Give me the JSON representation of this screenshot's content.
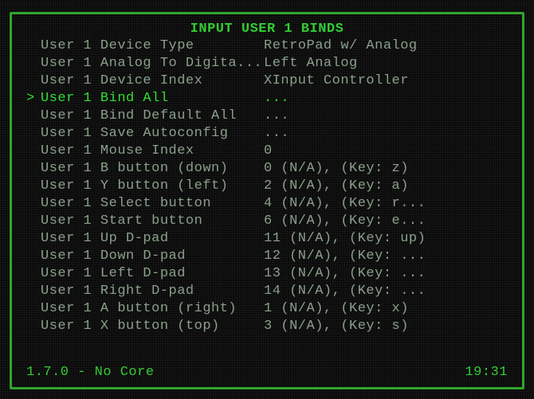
{
  "title": "INPUT USER 1 BINDS",
  "selected_index": 3,
  "rows": [
    {
      "label": "User 1 Device Type",
      "value": "RetroPad w/ Analog"
    },
    {
      "label": "User 1 Analog To Digita...",
      "value": "Left Analog"
    },
    {
      "label": "User 1 Device Index",
      "value": "XInput Controller"
    },
    {
      "label": "User 1 Bind All",
      "value": "..."
    },
    {
      "label": "User 1 Bind Default All",
      "value": "..."
    },
    {
      "label": "User 1 Save Autoconfig",
      "value": "..."
    },
    {
      "label": "User 1 Mouse Index",
      "value": "0"
    },
    {
      "label": "User 1 B button (down)",
      "value": "0 (N/A), (Key: z)"
    },
    {
      "label": "User 1 Y button (left)",
      "value": "2 (N/A), (Key: a)"
    },
    {
      "label": "User 1 Select button",
      "value": "4 (N/A), (Key: r..."
    },
    {
      "label": "User 1 Start button",
      "value": "6 (N/A), (Key: e..."
    },
    {
      "label": "User 1 Up D-pad",
      "value": "11 (N/A), (Key: up)"
    },
    {
      "label": "User 1 Down D-pad",
      "value": "12 (N/A), (Key: ..."
    },
    {
      "label": "User 1 Left D-pad",
      "value": "13 (N/A), (Key: ..."
    },
    {
      "label": "User 1 Right D-pad",
      "value": "14 (N/A), (Key: ..."
    },
    {
      "label": "User 1 A button (right)",
      "value": "1 (N/A), (Key: x)"
    },
    {
      "label": "User 1 X button (top)",
      "value": "3 (N/A), (Key: s)"
    }
  ],
  "status": {
    "left": "1.7.0 - No Core",
    "right": "19:31"
  },
  "colors": {
    "background": "#0a0a0a",
    "border": "#2fa52f",
    "text_dim": "#8aa08a",
    "text_bright": "#33dd33",
    "title": "#33cc33"
  }
}
